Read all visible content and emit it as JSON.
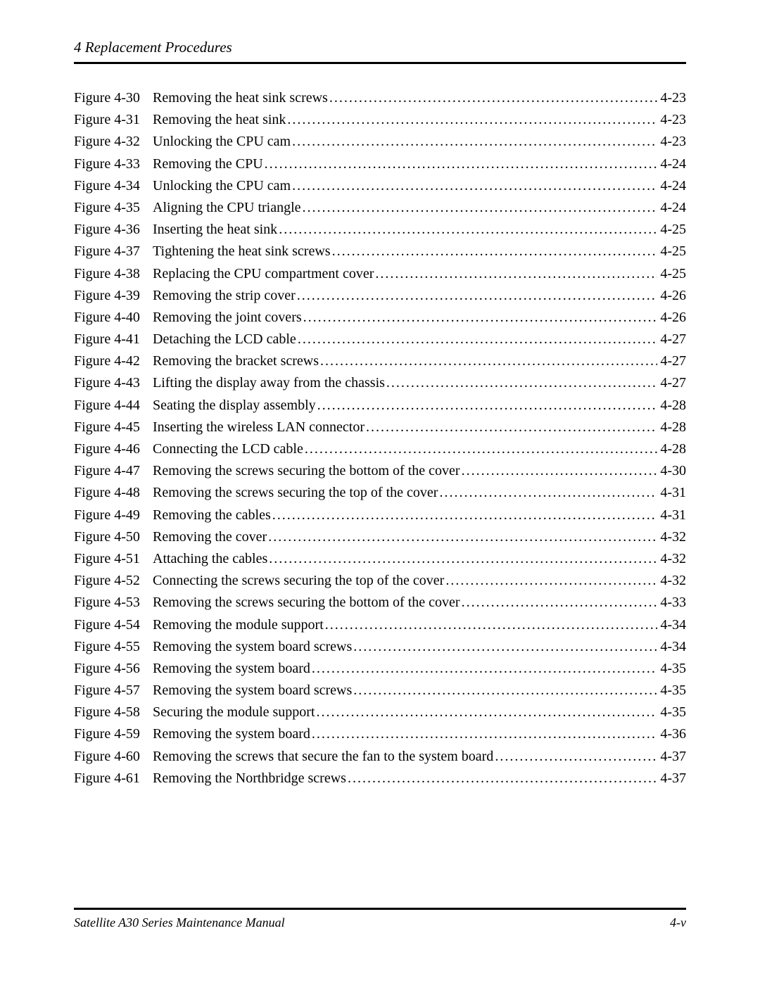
{
  "header": {
    "title": "4  Replacement Procedures"
  },
  "footer": {
    "left": "Satellite A30 Series Maintenance Manual",
    "right": "4-v"
  },
  "toc": {
    "entries": [
      {
        "label": "Figure 4-30",
        "desc": "Removing the heat sink screws",
        "page": "4-23"
      },
      {
        "label": "Figure 4-31",
        "desc": "Removing the heat sink",
        "page": "4-23"
      },
      {
        "label": "Figure 4-32",
        "desc": "Unlocking the CPU cam",
        "page": "4-23"
      },
      {
        "label": "Figure 4-33",
        "desc": "Removing the CPU",
        "page": "4-24"
      },
      {
        "label": "Figure 4-34",
        "desc": "Unlocking the CPU cam",
        "page": "4-24"
      },
      {
        "label": "Figure 4-35",
        "desc": "Aligning the CPU triangle",
        "page": "4-24"
      },
      {
        "label": "Figure 4-36",
        "desc": "Inserting the heat sink",
        "page": "4-25"
      },
      {
        "label": "Figure 4-37",
        "desc": "Tightening the heat sink screws",
        "page": "4-25"
      },
      {
        "label": "Figure 4-38",
        "desc": "Replacing the CPU compartment cover",
        "page": "4-25"
      },
      {
        "label": "Figure 4-39",
        "desc": "Removing the strip cover",
        "page": "4-26"
      },
      {
        "label": "Figure 4-40",
        "desc": "Removing the joint covers",
        "page": "4-26"
      },
      {
        "label": "Figure 4-41",
        "desc": "Detaching the LCD cable",
        "page": "4-27"
      },
      {
        "label": "Figure 4-42",
        "desc": "Removing the bracket screws",
        "page": "4-27"
      },
      {
        "label": "Figure 4-43",
        "desc": "Lifting the display away from the chassis",
        "page": "4-27"
      },
      {
        "label": "Figure 4-44",
        "desc": "Seating the display assembly",
        "page": "4-28"
      },
      {
        "label": "Figure 4-45",
        "desc": "Inserting the wireless LAN connector",
        "page": "4-28"
      },
      {
        "label": "Figure 4-46",
        "desc": "Connecting the LCD cable",
        "page": "4-28"
      },
      {
        "label": "Figure 4-47",
        "desc": "Removing the screws securing the bottom of the cover",
        "page": "4-30"
      },
      {
        "label": "Figure 4-48",
        "desc": "Removing the screws securing the top of the cover",
        "page": "4-31"
      },
      {
        "label": "Figure 4-49",
        "desc": "Removing the cables",
        "page": "4-31"
      },
      {
        "label": "Figure 4-50",
        "desc": "Removing the cover",
        "page": "4-32"
      },
      {
        "label": "Figure 4-51",
        "desc": "Attaching the cables",
        "page": "4-32"
      },
      {
        "label": "Figure 4-52",
        "desc": "Connecting the screws securing the top of the cover",
        "page": "4-32"
      },
      {
        "label": "Figure 4-53",
        "desc": "Removing the screws securing the bottom of the cover",
        "page": "4-33"
      },
      {
        "label": "Figure 4-54",
        "desc": "Removing the module support",
        "page": "4-34"
      },
      {
        "label": "Figure 4-55",
        "desc": "Removing the system board screws",
        "page": "4-34"
      },
      {
        "label": "Figure 4-56",
        "desc": "Removing the system board",
        "page": "4-35"
      },
      {
        "label": "Figure 4-57",
        "desc": "Removing the system board screws",
        "page": "4-35"
      },
      {
        "label": "Figure 4-58",
        "desc": "Securing the module support",
        "page": "4-35"
      },
      {
        "label": "Figure 4-59",
        "desc": "Removing the system board",
        "page": "4-36"
      },
      {
        "label": "Figure 4-60",
        "desc": "Removing the screws that secure the fan to the system board",
        "page": "4-37"
      },
      {
        "label": "Figure 4-61",
        "desc": "Removing the Northbridge screws",
        "page": "4-37"
      }
    ]
  }
}
